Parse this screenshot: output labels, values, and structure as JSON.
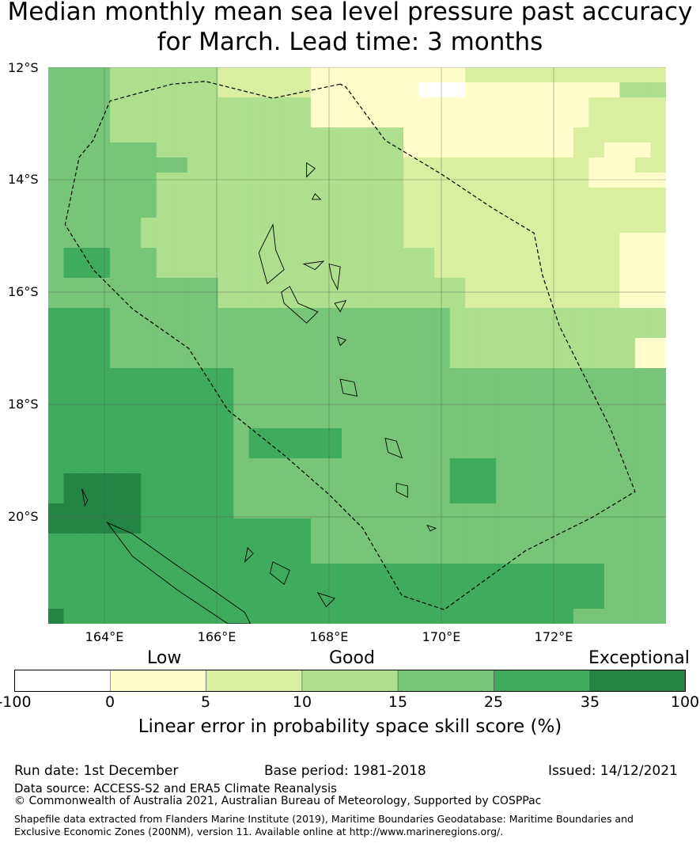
{
  "title": "Median monthly mean sea level pressure past accuracy for March. Lead time: 3 months",
  "map": {
    "lat_labels": [
      "12°S",
      "14°S",
      "16°S",
      "18°S",
      "20°S"
    ],
    "lon_labels": [
      "164°E",
      "166°E",
      "168°E",
      "170°E",
      "172°E"
    ],
    "lon_range": [
      163,
      174
    ],
    "lat_range": [
      -21.9,
      -12.0
    ],
    "grid_colors": {
      "W": "#ffffff",
      "Y": "#fffdc9",
      "L": "#daeea0",
      "M": "#addf8d",
      "G": "#77c578",
      "D": "#41ab5d",
      "X": "#238443"
    },
    "grid_rows": [
      "GGGGMMMMMMMLLLLLLYYYYYYYYYYLLLLLLLLLLLLL",
      "GGGGMMMMMMMLLLLLLYYYYYYYWWWYYYYYYYYYYMMM",
      "GGGGMMMMMMMMMMMMMYYYYYYYYYYYYYYYYYYLLLLL",
      "GGGGMMMMMMMMMMMMMYYYYYYYYYYYYYYYYYYLLLLL",
      "GGGGMMMMMMMMMMMMMMMMMMMYYYYYYYYYYYLLLLLL",
      "GGGGGGGMMMMMMMMMMMMMMMMYYYYYYYYYYYLLYYYL",
      "GGGGGGGGGMMMMMMMMMMMMMMLLLLLLLLLLLLYYYLL",
      "GGGGGGGMMMMMMMMMMMMMMMMLLLLLLLLLLLLYYYYY",
      "GGGGGGGMMMMMMMMMMMMMMMMLLLLLLLLLLLLLLLLL",
      "GGGGGGGMMMMMMMMMMMMMMMMLLLLLLLLLLLLLLLLL",
      "GGGGGGMMMMMMMMMMMMMMMMMLLLLLLLLLLLLLLLLL",
      "GGGGGGMMMMMMMMMMMMMMMMMLLLLLLLLLLLLLLYYY",
      "GDDDGGGMMMMMMMMMMMMMMMMMMLLLLLLLLLLLLYYY",
      "GDDDGGGMMMMMMMMMMMMMMMMMMLLLLLLLLLLLLYYY",
      "GGGGGGGGGGGMMMMMMMMMMMMMMMMLLLLLLLLLLYYY",
      "GGGGGGGGGGGMMMMMMMMMMMMMMMMLLLLLLLLLLYYY",
      "DDDDGGGGGGGGGGGGGGGGGGGGGGMMMMMMMMMMMMMM",
      "DDDDGGGGGGGGGGGGGGGGGGGGGGMMMMMMMMMMMMMM",
      "DDDDGGGGGGGGGGGGGGGGGGGGGGMMMMMMMMMMMMYY",
      "DDDDGGGGGGGGGGGGGGGGGGGGGGMMMMMMMMMMMMYY",
      "DDDDDDDDDDDDGGGGGGGGGGGGGGGGGGGGGGGGGGGG",
      "DDDDDDDDDDDDGGGGGGGGGGGGGGGGGGGGGGGGGGGG",
      "DDDDDDDDDDDDGGGGGGGGGGGGGGGGGGGGGGGGGGGG",
      "DDDDDDDDDDDDGGGGGGGGGGGGGGGGGGGGGGGGGGGG",
      "DDDDDDDDDDDDGDDDDDDGGGGGGGGGGGGGGGGGGGGG",
      "DDDDDDDDDDDDGDDDDDDGGGGGGGGGGGGGGGGGGGGG",
      "DDDDDDDDDDDDGGGGGGGGGGGGGGDDDGGGGGGGGGGG",
      "DXXXXXDDDDDDGGGGGGGGGGGGGGDDDGGGGGGGGGGG",
      "DXXXXXDDDDDDGGGGGGGGGGGGGGDDDGGGGGGGGGGG",
      "XXXXXXDDDDDDGGGGGGGGGGGGGGGGGGGGGGGGGGGG",
      "XXXXXXDDDDDDDDDDDGGGGGGGGGGGGGGGGGGGGGGG",
      "DDDDDDDDDDDDDDDDDGGGGGGGGGGGGGGGGGGGGGGG",
      "DDDDDDDDDDDDDDDDDGGGGGGGGGGGGGGGGGGGGGGG",
      "DDDDDDDDDDDDDDDDDDDDDDDDDDDDDDDDDDDDGGGG",
      "DDDDDDDDDDDDDDDDDDDDDDDDDDDDDDDDDDDDGGGG",
      "DDDDDDDDDDDDDDDDDDDDDDDDDDDDDDDDDDDDGGGG",
      "XDDDDDDDDDDDDDDDDDDDDDDDDDDDDDDDDDGGGGGG"
    ],
    "eez_boundary": [
      [
        168.2,
        -12.3
      ],
      [
        167.0,
        -12.55
      ],
      [
        165.8,
        -12.25
      ],
      [
        165.2,
        -12.3
      ],
      [
        164.1,
        -12.6
      ],
      [
        163.8,
        -13.3
      ],
      [
        163.55,
        -13.6
      ],
      [
        163.3,
        -14.8
      ],
      [
        163.8,
        -15.6
      ],
      [
        164.5,
        -16.3
      ],
      [
        165.5,
        -17.0
      ],
      [
        166.2,
        -18.1
      ],
      [
        167.2,
        -18.9
      ],
      [
        168.0,
        -19.6
      ],
      [
        168.6,
        -20.2
      ],
      [
        169.3,
        -21.4
      ],
      [
        170.05,
        -21.65
      ],
      [
        171.5,
        -20.6
      ],
      [
        172.7,
        -20.0
      ],
      [
        173.45,
        -19.55
      ],
      [
        173.0,
        -18.4
      ],
      [
        172.1,
        -16.6
      ],
      [
        171.8,
        -15.7
      ],
      [
        171.65,
        -14.95
      ],
      [
        170.9,
        -14.5
      ],
      [
        170.0,
        -13.9
      ],
      [
        169.0,
        -13.3
      ],
      [
        168.3,
        -12.35
      ]
    ],
    "islands": [
      [
        [
          166.85,
          -15.1
        ],
        [
          167.0,
          -14.8
        ],
        [
          167.05,
          -15.25
        ],
        [
          167.2,
          -15.6
        ],
        [
          166.9,
          -15.85
        ],
        [
          166.75,
          -15.3
        ]
      ],
      [
        [
          167.15,
          -16.0
        ],
        [
          167.3,
          -15.9
        ],
        [
          167.45,
          -16.2
        ],
        [
          167.8,
          -16.35
        ],
        [
          167.6,
          -16.55
        ],
        [
          167.2,
          -16.2
        ]
      ],
      [
        [
          168.0,
          -15.5
        ],
        [
          168.2,
          -15.55
        ],
        [
          168.15,
          -15.95
        ],
        [
          168.05,
          -15.75
        ]
      ],
      [
        [
          168.1,
          -16.2
        ],
        [
          168.3,
          -16.15
        ],
        [
          168.2,
          -16.35
        ]
      ],
      [
        [
          168.2,
          -17.55
        ],
        [
          168.45,
          -17.6
        ],
        [
          168.5,
          -17.85
        ],
        [
          168.25,
          -17.8
        ]
      ],
      [
        [
          169.0,
          -18.6
        ],
        [
          169.2,
          -18.65
        ],
        [
          169.3,
          -18.95
        ],
        [
          169.05,
          -18.85
        ]
      ],
      [
        [
          169.2,
          -19.4
        ],
        [
          169.4,
          -19.45
        ],
        [
          169.4,
          -19.65
        ],
        [
          169.2,
          -19.55
        ]
      ],
      [
        [
          167.55,
          -15.5
        ],
        [
          167.9,
          -15.45
        ],
        [
          167.75,
          -15.6
        ]
      ],
      [
        [
          167.6,
          -13.7
        ],
        [
          167.75,
          -13.8
        ],
        [
          167.6,
          -13.95
        ]
      ],
      [
        [
          167.75,
          -14.25
        ],
        [
          167.85,
          -14.35
        ],
        [
          167.7,
          -14.35
        ]
      ],
      [
        [
          168.15,
          -16.8
        ],
        [
          168.3,
          -16.85
        ],
        [
          168.2,
          -16.95
        ]
      ],
      [
        [
          169.75,
          -20.15
        ],
        [
          169.9,
          -20.2
        ],
        [
          169.8,
          -20.25
        ]
      ],
      [
        [
          164.05,
          -20.1
        ],
        [
          164.5,
          -20.3
        ],
        [
          165.2,
          -20.8
        ],
        [
          166.0,
          -21.35
        ],
        [
          166.5,
          -21.7
        ],
        [
          166.6,
          -21.9
        ],
        [
          166.2,
          -21.9
        ],
        [
          165.3,
          -21.3
        ],
        [
          164.5,
          -20.7
        ]
      ],
      [
        [
          166.55,
          -20.55
        ],
        [
          166.65,
          -20.65
        ],
        [
          166.5,
          -20.8
        ]
      ],
      [
        [
          167.0,
          -20.8
        ],
        [
          167.3,
          -20.95
        ],
        [
          167.2,
          -21.2
        ],
        [
          166.95,
          -21.0
        ]
      ],
      [
        [
          167.8,
          -21.35
        ],
        [
          168.1,
          -21.45
        ],
        [
          167.95,
          -21.6
        ]
      ],
      [
        [
          163.6,
          -19.5
        ],
        [
          163.7,
          -19.7
        ],
        [
          163.65,
          -19.8
        ]
      ]
    ]
  },
  "legend": {
    "categories": [
      {
        "label": "Low"
      },
      {
        "label": "Good"
      },
      {
        "label": "Exceptional"
      }
    ],
    "bins": [
      {
        "color": "#ffffff"
      },
      {
        "color": "#fffdc9"
      },
      {
        "color": "#daeea0"
      },
      {
        "color": "#addf8d"
      },
      {
        "color": "#77c578"
      },
      {
        "color": "#41ab5d"
      },
      {
        "color": "#238443"
      }
    ],
    "ticks": [
      "-100",
      "0",
      "5",
      "10",
      "15",
      "25",
      "35",
      "100"
    ],
    "title": "Linear error in probability space skill score (%)"
  },
  "footer": {
    "run_date": "Run date: 1st December",
    "base_period": "Base period: 1981-2018",
    "issued": "Issued: 14/12/2021",
    "data_source": "Data source: ACCESS-S2 and ERA5 Climate Reanalysis",
    "copyright": "© Commonwealth of Australia 2021, Australian Bureau of Meteorology, Supported by COSPPac",
    "shapefile": "Shapefile data extracted from Flanders Marine Institute (2019), Maritime Boundaries Geodatabase: Maritime Boundaries and Exclusive Economic Zones (200NM), version 11. Available online at http://www.marineregions.org/."
  }
}
